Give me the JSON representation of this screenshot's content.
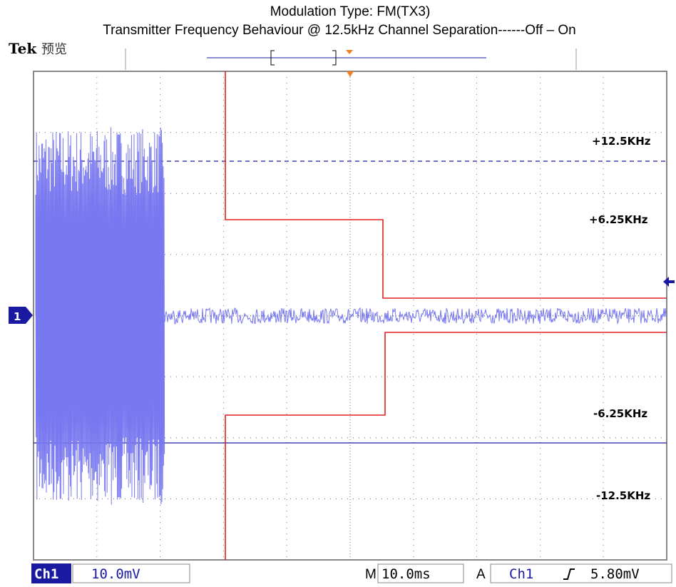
{
  "header": {
    "title": "Modulation Type: FM(TX3)",
    "subtitle": "Transmitter Frequency Behaviour @ 12.5kHz Channel Separation------Off – On"
  },
  "status": {
    "brand": "Tek",
    "mode": "预览"
  },
  "labels": [
    "+12.5KHz",
    "+6.25KHz",
    "-6.25KHz",
    "-12.5KHz"
  ],
  "channel_marker": "1",
  "footer": {
    "channel": "Ch1",
    "scale": "10.0mV",
    "time_prefix": "M",
    "time_scale": "10.0ms",
    "trigger_prefix": "A",
    "trigger_channel": "Ch1",
    "trigger_level": "5.80mV"
  }
}
